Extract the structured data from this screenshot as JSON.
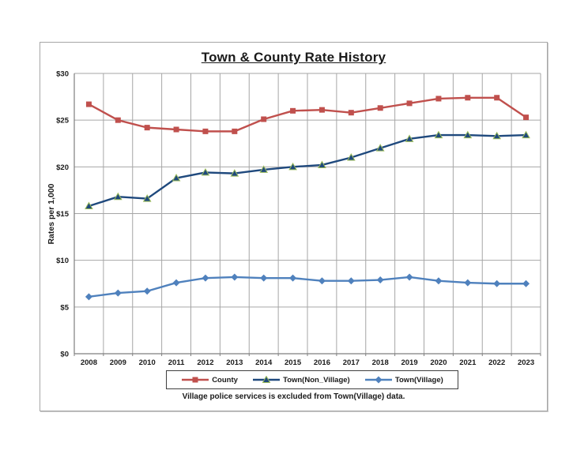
{
  "chart_data": {
    "type": "line",
    "title": "Town & County Rate History",
    "xlabel": "",
    "ylabel": "Rates per 1,000",
    "ylim": [
      0,
      30
    ],
    "ytick_step": 5,
    "ytick_labels": [
      "$0",
      "$5",
      "$10",
      "$15",
      "$20",
      "$25",
      "$30"
    ],
    "grid": true,
    "legend_position": "bottom",
    "categories": [
      "2008",
      "2009",
      "2010",
      "2011",
      "2012",
      "2013",
      "2014",
      "2015",
      "2016",
      "2017",
      "2018",
      "2019",
      "2020",
      "2021",
      "2022",
      "2023"
    ],
    "series": [
      {
        "name": "County",
        "marker": "square",
        "color": "#C0504D",
        "values": [
          26.7,
          25.0,
          24.2,
          24.0,
          23.8,
          23.8,
          25.1,
          26.0,
          26.1,
          25.8,
          26.3,
          26.8,
          27.3,
          27.4,
          27.4,
          25.3
        ]
      },
      {
        "name": "Town(Non_Village)",
        "marker": "triangle",
        "color": "#1F497D",
        "marker_edge": "#9BBB59",
        "values": [
          15.8,
          16.8,
          16.6,
          18.8,
          19.4,
          19.3,
          19.7,
          20.0,
          20.2,
          21.0,
          22.0,
          23.0,
          23.4,
          23.4,
          23.3,
          23.4
        ]
      },
      {
        "name": "Town(Village)",
        "marker": "diamond",
        "color": "#4F81BD",
        "values": [
          6.1,
          6.5,
          6.7,
          7.6,
          8.1,
          8.2,
          8.1,
          8.1,
          7.8,
          7.8,
          7.9,
          8.2,
          7.8,
          7.6,
          7.5,
          7.5
        ]
      }
    ],
    "footnote": "Village police services is excluded from Town(Village) data."
  },
  "colors": {
    "grid": "#A6A6A6",
    "axis": "#7F7F7F",
    "text": "#1A1A1A",
    "frame_border": "#A6A6A6"
  }
}
